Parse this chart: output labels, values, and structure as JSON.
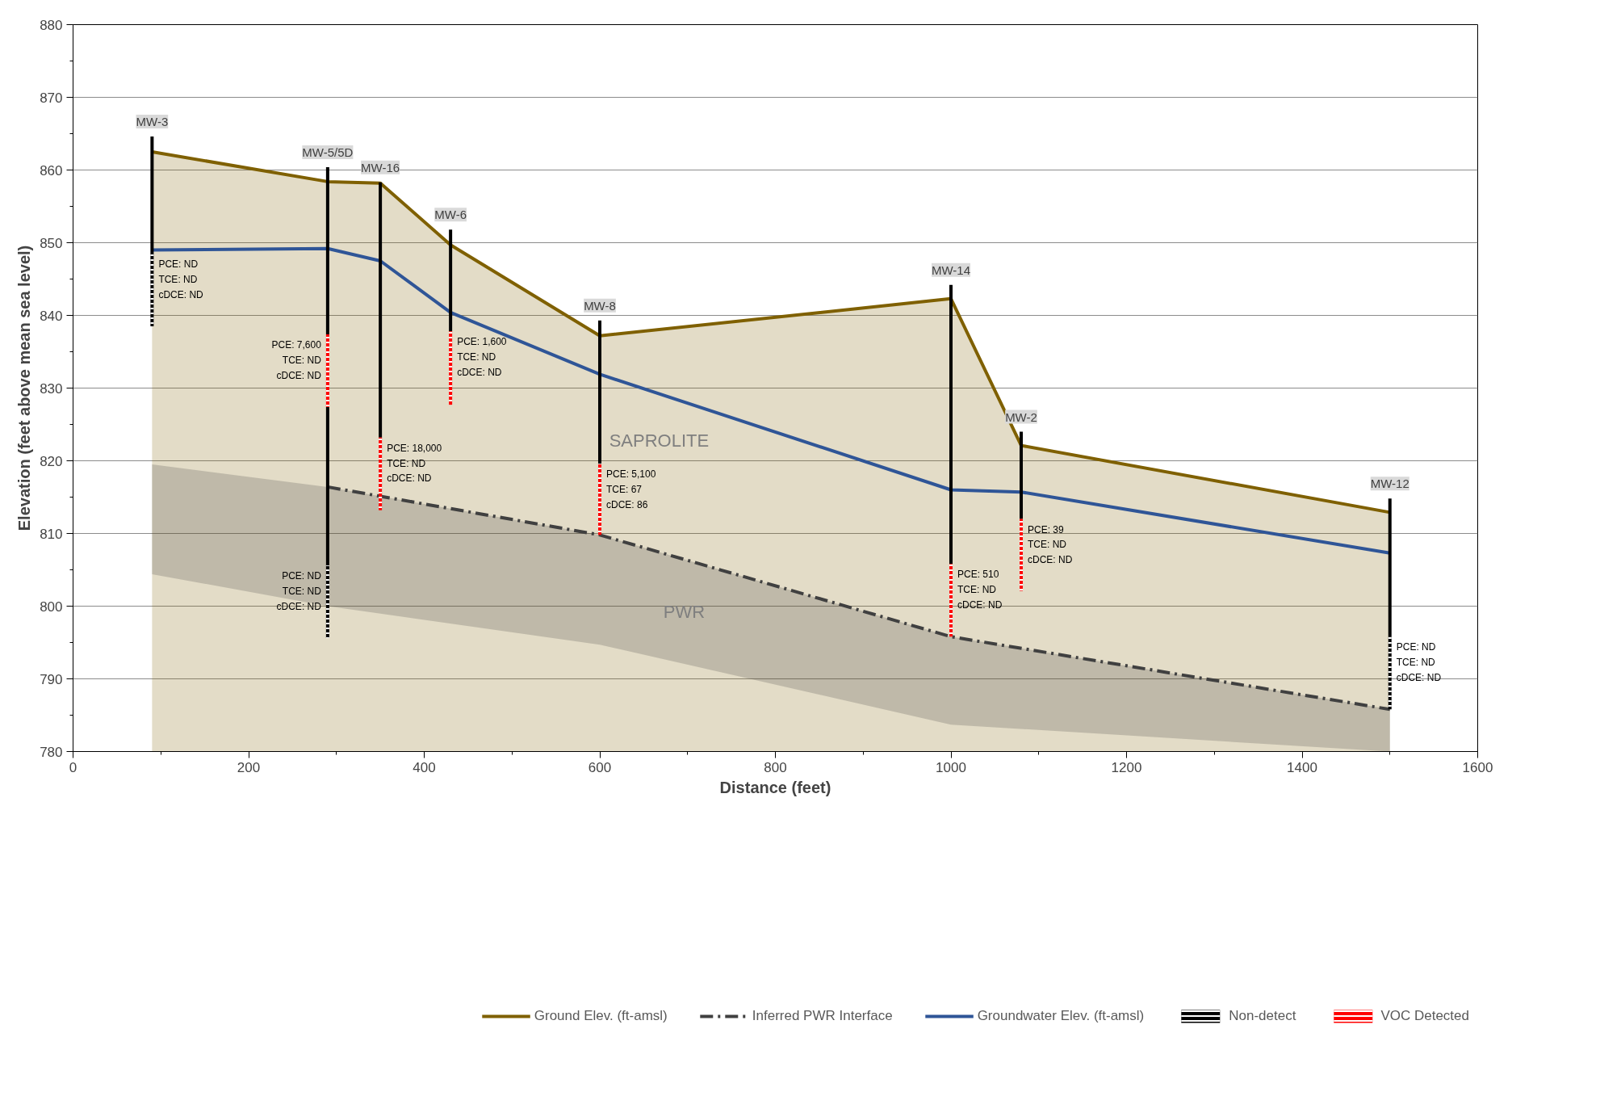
{
  "chart_data": {
    "type": "line",
    "xlabel": "Distance (feet)",
    "ylabel": "Elevation (feet above mean sea level)",
    "xlim": [
      0,
      1600
    ],
    "xticks": [
      0,
      200,
      400,
      600,
      800,
      1000,
      1200,
      1400,
      1600
    ],
    "ylim": [
      780,
      880
    ],
    "yticks": [
      780,
      790,
      800,
      810,
      820,
      830,
      840,
      850,
      860,
      870,
      880
    ],
    "grid": "y",
    "legend": "bottom",
    "series": [
      {
        "type": "area",
        "name": "Ground Elev. (ft-amsl)",
        "color": "#7f6000",
        "line_style": "solid",
        "x": [
          90,
          290,
          350,
          430,
          600,
          1000,
          1080,
          1500
        ],
        "values": [
          862.5,
          858.4,
          858.2,
          849.7,
          837.2,
          842.3,
          822.1,
          812.9
        ]
      },
      {
        "name": "Inferred PWR Interface",
        "color": "#404040",
        "line_style": "dashed",
        "x": [
          90,
          290,
          600,
          1000,
          1500
        ],
        "values": [
          null,
          816.4,
          809.8,
          795.8,
          785.8
        ],
        "upper": [
          819.5,
          816.4,
          809.8,
          795.8,
          785.8
        ],
        "lower": [
          804.4,
          800.0,
          794.7,
          783.7,
          780.0
        ]
      },
      {
        "name": "Groundwater Elev. (ft-amsl)",
        "color": "#2f5597",
        "line_style": "solid",
        "x": [
          90,
          290,
          350,
          430,
          600,
          1000,
          1080,
          1500
        ],
        "values": [
          849.0,
          849.2,
          847.5,
          840.4,
          831.9,
          816.0,
          815.7,
          807.3
        ]
      },
      {
        "type": "bar",
        "color": "#000000",
        "line_style": "solid",
        "x": [
          90,
          290,
          350,
          430,
          600,
          1000,
          1080,
          1500
        ],
        "base": [
          848.5,
          837.4,
          823.2,
          837.8,
          819.6,
          805.8,
          812.0,
          795.8
        ],
        "values": [
          16.1,
          23.0,
          35.1,
          14.0,
          19.7,
          38.4,
          12.0,
          19.0
        ],
        "value_labels": [
          "MW-3",
          "MW-5/5D",
          "MW-16",
          "MW-6",
          "MW-8",
          "MW-14",
          "MW-2",
          "MW-12"
        ]
      },
      {
        "type": "bar",
        "color": "#000000",
        "line_style": "solid",
        "x": [
          290
        ],
        "base": [
          805.6
        ],
        "values": [
          21.8
        ]
      },
      {
        "type": "bar",
        "name": "Non-detect",
        "color": "#000000",
        "line_style": "dotted",
        "x": [
          90,
          290,
          1500
        ],
        "base": [
          838.5,
          795.6,
          785.8
        ],
        "values": [
          10.0,
          10.0,
          10.0
        ]
      },
      {
        "type": "bar",
        "name": "VOC Detected",
        "color": "#ff0000",
        "line_style": "dotted",
        "x": [
          290,
          350,
          430,
          600,
          1000,
          1080
        ],
        "base": [
          827.4,
          813.2,
          827.7,
          809.8,
          795.8,
          802.1
        ],
        "values": [
          10.0,
          10.0,
          10.1,
          9.8,
          10.0,
          9.9
        ]
      }
    ],
    "annotations": [
      {
        "text": "PCE: ND\nTCE: ND\ncDCE: ND",
        "x": 90,
        "y": 848.5
      },
      {
        "text": "PCE: 7,600\nTCE: ND\ncDCE: ND",
        "x": 290,
        "y": 837.4
      },
      {
        "text": "PCE: 18,000\nTCE: ND\ncDCE: ND",
        "x": 350,
        "y": 823.2
      },
      {
        "text": "PCE: 1,600\nTCE: ND\ncDCE: ND",
        "x": 430,
        "y": 837.8
      },
      {
        "text": "PCE: 5,100\nTCE: 67\ncDCE: 86",
        "x": 600,
        "y": 819.6
      },
      {
        "text": "PCE: 510\nTCE: ND\ncDCE: ND",
        "x": 1000,
        "y": 805.8
      },
      {
        "text": "PCE: 39\nTCE: ND\ncDCE: ND",
        "x": 1080,
        "y": 812.0
      },
      {
        "text": "PCE: ND\nTCE: ND\ncDCE: ND",
        "x": 290,
        "y": 805.6
      },
      {
        "text": "PCE: ND\nTCE: ND\ncDCE: ND",
        "x": 1500,
        "y": 795.8
      },
      "SAPROLITE",
      "PWR"
    ]
  }
}
